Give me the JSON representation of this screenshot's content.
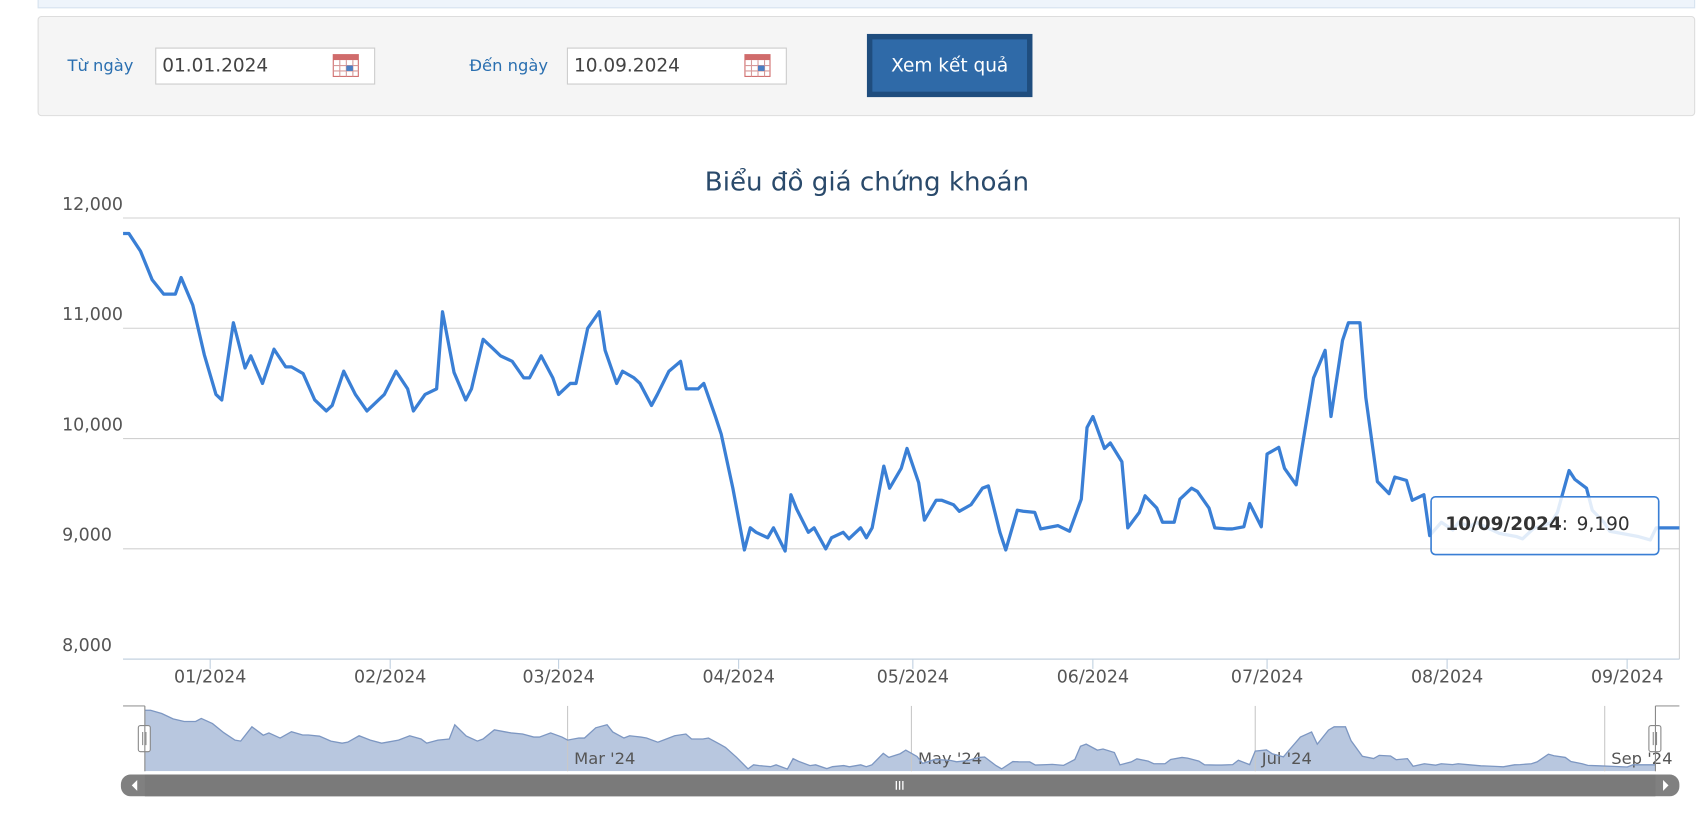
{
  "form": {
    "from_label": "Từ ngày",
    "from_value": "01.01.2024",
    "to_label": "Đến ngày",
    "to_value": "10.09.2024",
    "button": "Xem kết quả"
  },
  "chart_data": {
    "type": "line",
    "title": "Biểu đồ giá chứng khoán",
    "color": "#3a7fd5",
    "grid": true,
    "x": [
      "2023-12-17",
      "2023-12-18",
      "2023-12-20",
      "2023-12-22",
      "2023-12-24",
      "2023-12-26",
      "2023-12-27",
      "2023-12-29",
      "2023-12-31",
      "2024-01-02",
      "2024-01-03",
      "2024-01-05",
      "2024-01-07",
      "2024-01-08",
      "2024-01-10",
      "2024-01-12",
      "2024-01-14",
      "2024-01-15",
      "2024-01-17",
      "2024-01-19",
      "2024-01-21",
      "2024-01-22",
      "2024-01-24",
      "2024-01-26",
      "2024-01-28",
      "2024-01-29",
      "2024-01-31",
      "2024-02-02",
      "2024-02-04",
      "2024-02-05",
      "2024-02-07",
      "2024-02-09",
      "2024-02-10",
      "2024-02-12",
      "2024-02-14",
      "2024-02-15",
      "2024-02-17",
      "2024-02-19",
      "2024-02-20",
      "2024-02-22",
      "2024-02-24",
      "2024-02-25",
      "2024-02-27",
      "2024-02-29",
      "2024-03-01",
      "2024-03-03",
      "2024-03-04",
      "2024-03-06",
      "2024-03-08",
      "2024-03-09",
      "2024-03-11",
      "2024-03-12",
      "2024-03-14",
      "2024-03-15",
      "2024-03-17",
      "2024-03-18",
      "2024-03-20",
      "2024-03-22",
      "2024-03-23",
      "2024-03-25",
      "2024-03-26",
      "2024-03-28",
      "2024-03-29",
      "2024-03-31",
      "2024-04-02",
      "2024-04-03",
      "2024-04-04",
      "2024-04-06",
      "2024-04-07",
      "2024-04-09",
      "2024-04-10",
      "2024-04-11",
      "2024-04-13",
      "2024-04-14",
      "2024-04-16",
      "2024-04-17",
      "2024-04-19",
      "2024-04-20",
      "2024-04-22",
      "2024-04-23",
      "2024-04-24",
      "2024-04-26",
      "2024-04-27",
      "2024-04-29",
      "2024-04-30",
      "2024-05-02",
      "2024-05-03",
      "2024-05-05",
      "2024-05-06",
      "2024-05-08",
      "2024-05-09",
      "2024-05-11",
      "2024-05-13",
      "2024-05-14",
      "2024-05-16",
      "2024-05-17",
      "2024-05-19",
      "2024-05-20",
      "2024-05-22",
      "2024-05-23",
      "2024-05-25",
      "2024-05-26",
      "2024-05-28",
      "2024-05-30",
      "2024-05-31",
      "2024-06-01",
      "2024-06-03",
      "2024-06-04",
      "2024-06-06",
      "2024-06-07",
      "2024-06-09",
      "2024-06-10",
      "2024-06-12",
      "2024-06-13",
      "2024-06-15",
      "2024-06-16",
      "2024-06-18",
      "2024-06-19",
      "2024-06-21",
      "2024-06-22",
      "2024-06-24",
      "2024-06-25",
      "2024-06-27",
      "2024-06-28",
      "2024-06-30",
      "2024-07-01",
      "2024-07-03",
      "2024-07-04",
      "2024-07-06",
      "2024-07-07",
      "2024-07-09",
      "2024-07-11",
      "2024-07-12",
      "2024-07-14",
      "2024-07-15",
      "2024-07-17",
      "2024-07-18",
      "2024-07-20",
      "2024-07-22",
      "2024-07-23",
      "2024-07-25",
      "2024-07-26",
      "2024-07-28",
      "2024-07-29",
      "2024-07-31",
      "2024-08-02",
      "2024-08-03",
      "2024-08-05",
      "2024-08-06",
      "2024-08-08",
      "2024-08-10",
      "2024-08-11",
      "2024-08-13",
      "2024-08-14",
      "2024-08-16",
      "2024-08-17",
      "2024-08-19",
      "2024-08-20",
      "2024-08-22",
      "2024-08-23",
      "2024-08-25",
      "2024-08-26",
      "2024-08-28",
      "2024-08-29",
      "2024-08-31",
      "2024-09-03",
      "2024-09-05",
      "2024-09-06",
      "2024-09-10"
    ],
    "values": [
      11860,
      11860,
      11700,
      11440,
      11310,
      11310,
      11460,
      11210,
      10760,
      10400,
      10350,
      11050,
      10640,
      10750,
      10500,
      10810,
      10650,
      10650,
      10590,
      10350,
      10250,
      10300,
      10610,
      10400,
      10250,
      10300,
      10400,
      10610,
      10450,
      10250,
      10400,
      10450,
      11150,
      10600,
      10350,
      10450,
      10900,
      10800,
      10750,
      10700,
      10550,
      10550,
      10750,
      10550,
      10400,
      10500,
      10500,
      11000,
      11150,
      10800,
      10500,
      10610,
      10550,
      10500,
      10300,
      10400,
      10610,
      10700,
      10450,
      10450,
      10500,
      10200,
      10040,
      9550,
      8990,
      9190,
      9150,
      9100,
      9190,
      8980,
      9490,
      9360,
      9150,
      9190,
      9000,
      9100,
      9150,
      9090,
      9190,
      9100,
      9190,
      9750,
      9550,
      9730,
      9910,
      9600,
      9260,
      9440,
      9440,
      9400,
      9340,
      9400,
      9550,
      9570,
      9150,
      8990,
      9350,
      9340,
      9330,
      9180,
      9200,
      9210,
      9160,
      9450,
      10100,
      10200,
      9910,
      9960,
      9790,
      9190,
      9330,
      9480,
      9370,
      9240,
      9240,
      9450,
      9550,
      9520,
      9370,
      9190,
      9180,
      9180,
      9200,
      9410,
      9200,
      9860,
      9920,
      9730,
      9580,
      9910,
      10550,
      10800,
      10200,
      10890,
      11050,
      11050,
      10370,
      9610,
      9500,
      9650,
      9620,
      9440,
      9490,
      9120,
      9240,
      9170,
      9240,
      9200,
      9240,
      9190,
      9140,
      9130,
      9110,
      9090,
      9190,
      9200,
      9240,
      9330,
      9710,
      9630,
      9550,
      9350,
      9240,
      9160,
      9140,
      9110,
      9080,
      9190,
      9190
    ],
    "xlim": [
      "2023-12-17",
      "2024-09-10"
    ],
    "xticks": [
      {
        "value": "2024-01-01",
        "label": "01/2024"
      },
      {
        "value": "2024-02-01",
        "label": "02/2024"
      },
      {
        "value": "2024-03-01",
        "label": "03/2024"
      },
      {
        "value": "2024-04-01",
        "label": "04/2024"
      },
      {
        "value": "2024-05-01",
        "label": "05/2024"
      },
      {
        "value": "2024-06-01",
        "label": "06/2024"
      },
      {
        "value": "2024-07-01",
        "label": "07/2024"
      },
      {
        "value": "2024-08-01",
        "label": "08/2024"
      },
      {
        "value": "2024-09-01",
        "label": "09/2024"
      }
    ],
    "ylim": [
      8000,
      12000
    ],
    "yticks": [
      {
        "value": 8000,
        "label": "8,000"
      },
      {
        "value": 9000,
        "label": "9,000"
      },
      {
        "value": 10000,
        "label": "10,000"
      },
      {
        "value": 11000,
        "label": "11,000"
      },
      {
        "value": 12000,
        "label": "12,000"
      }
    ],
    "navigator_ticks": [
      {
        "value": "2024-03-01",
        "label": "Mar '24"
      },
      {
        "value": "2024-05-01",
        "label": "May '24"
      },
      {
        "value": "2024-07-01",
        "label": "Jul '24"
      },
      {
        "value": "2024-09-01",
        "label": "Sep '24"
      }
    ],
    "tooltip": {
      "date": "10/09/2024",
      "separator": ":",
      "value": {
        "value": 9190,
        "label": "9,190"
      }
    }
  }
}
